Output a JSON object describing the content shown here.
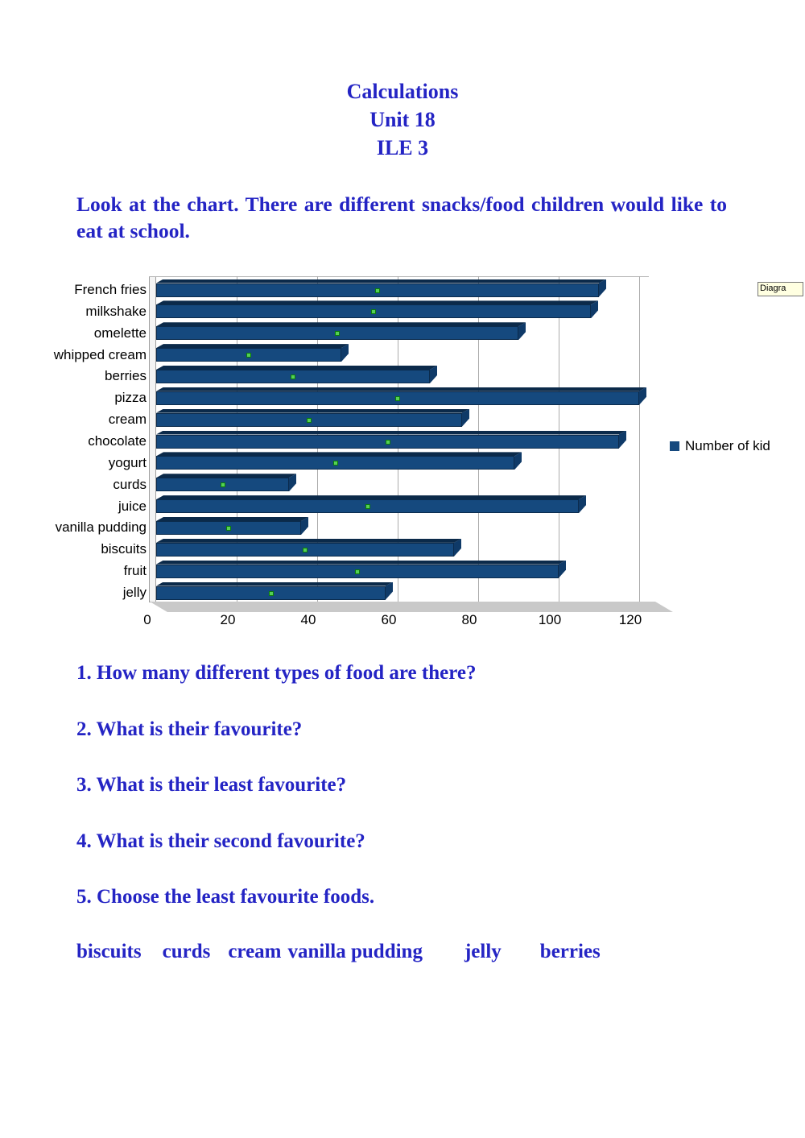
{
  "document": {
    "text_color": "#2424c4",
    "title_lines": [
      "Calculations",
      "Unit 18",
      "ILE 3"
    ],
    "intro": "Look at the chart. There are different snacks/food children would like to eat at school.",
    "questions": [
      "1. How many different types of food are there?",
      "2. What is their favourite?",
      "3. What is their least favourite?",
      "4. What is their second favourite?",
      "5. Choose the least favourite foods."
    ],
    "word_bank": [
      "biscuits",
      "curds",
      "cream",
      "vanilla pudding",
      "jelly",
      "berries"
    ]
  },
  "chart_data": {
    "type": "bar",
    "orientation": "horizontal",
    "style_3d": true,
    "title": "",
    "xlabel": "",
    "ylabel": "",
    "categories": [
      "French fries",
      "milkshake",
      "omelette",
      "whipped cream",
      "berries",
      "pizza",
      "cream",
      "chocolate",
      "yogurt",
      "curds",
      "juice",
      "vanilla pudding",
      "biscuits",
      "fruit",
      "jelly"
    ],
    "series": [
      {
        "name": "Number of kid",
        "values": [
          110,
          108,
          90,
          46,
          68,
          120,
          76,
          115,
          89,
          33,
          105,
          36,
          74,
          100,
          57
        ]
      }
    ],
    "xlim": [
      0,
      120
    ],
    "xticks": [
      0,
      20,
      40,
      60,
      80,
      100,
      120
    ],
    "grid": true,
    "legend_position": "right",
    "legend_label": "Number of kid",
    "tooltip_text": "Diagra",
    "bar_color": "#15497e",
    "bar_top_color": "#0b2a4a",
    "bar_cap_color": "#0f3a68",
    "selection_handle_color": "#55d055",
    "gridline_color": "#ababab"
  }
}
